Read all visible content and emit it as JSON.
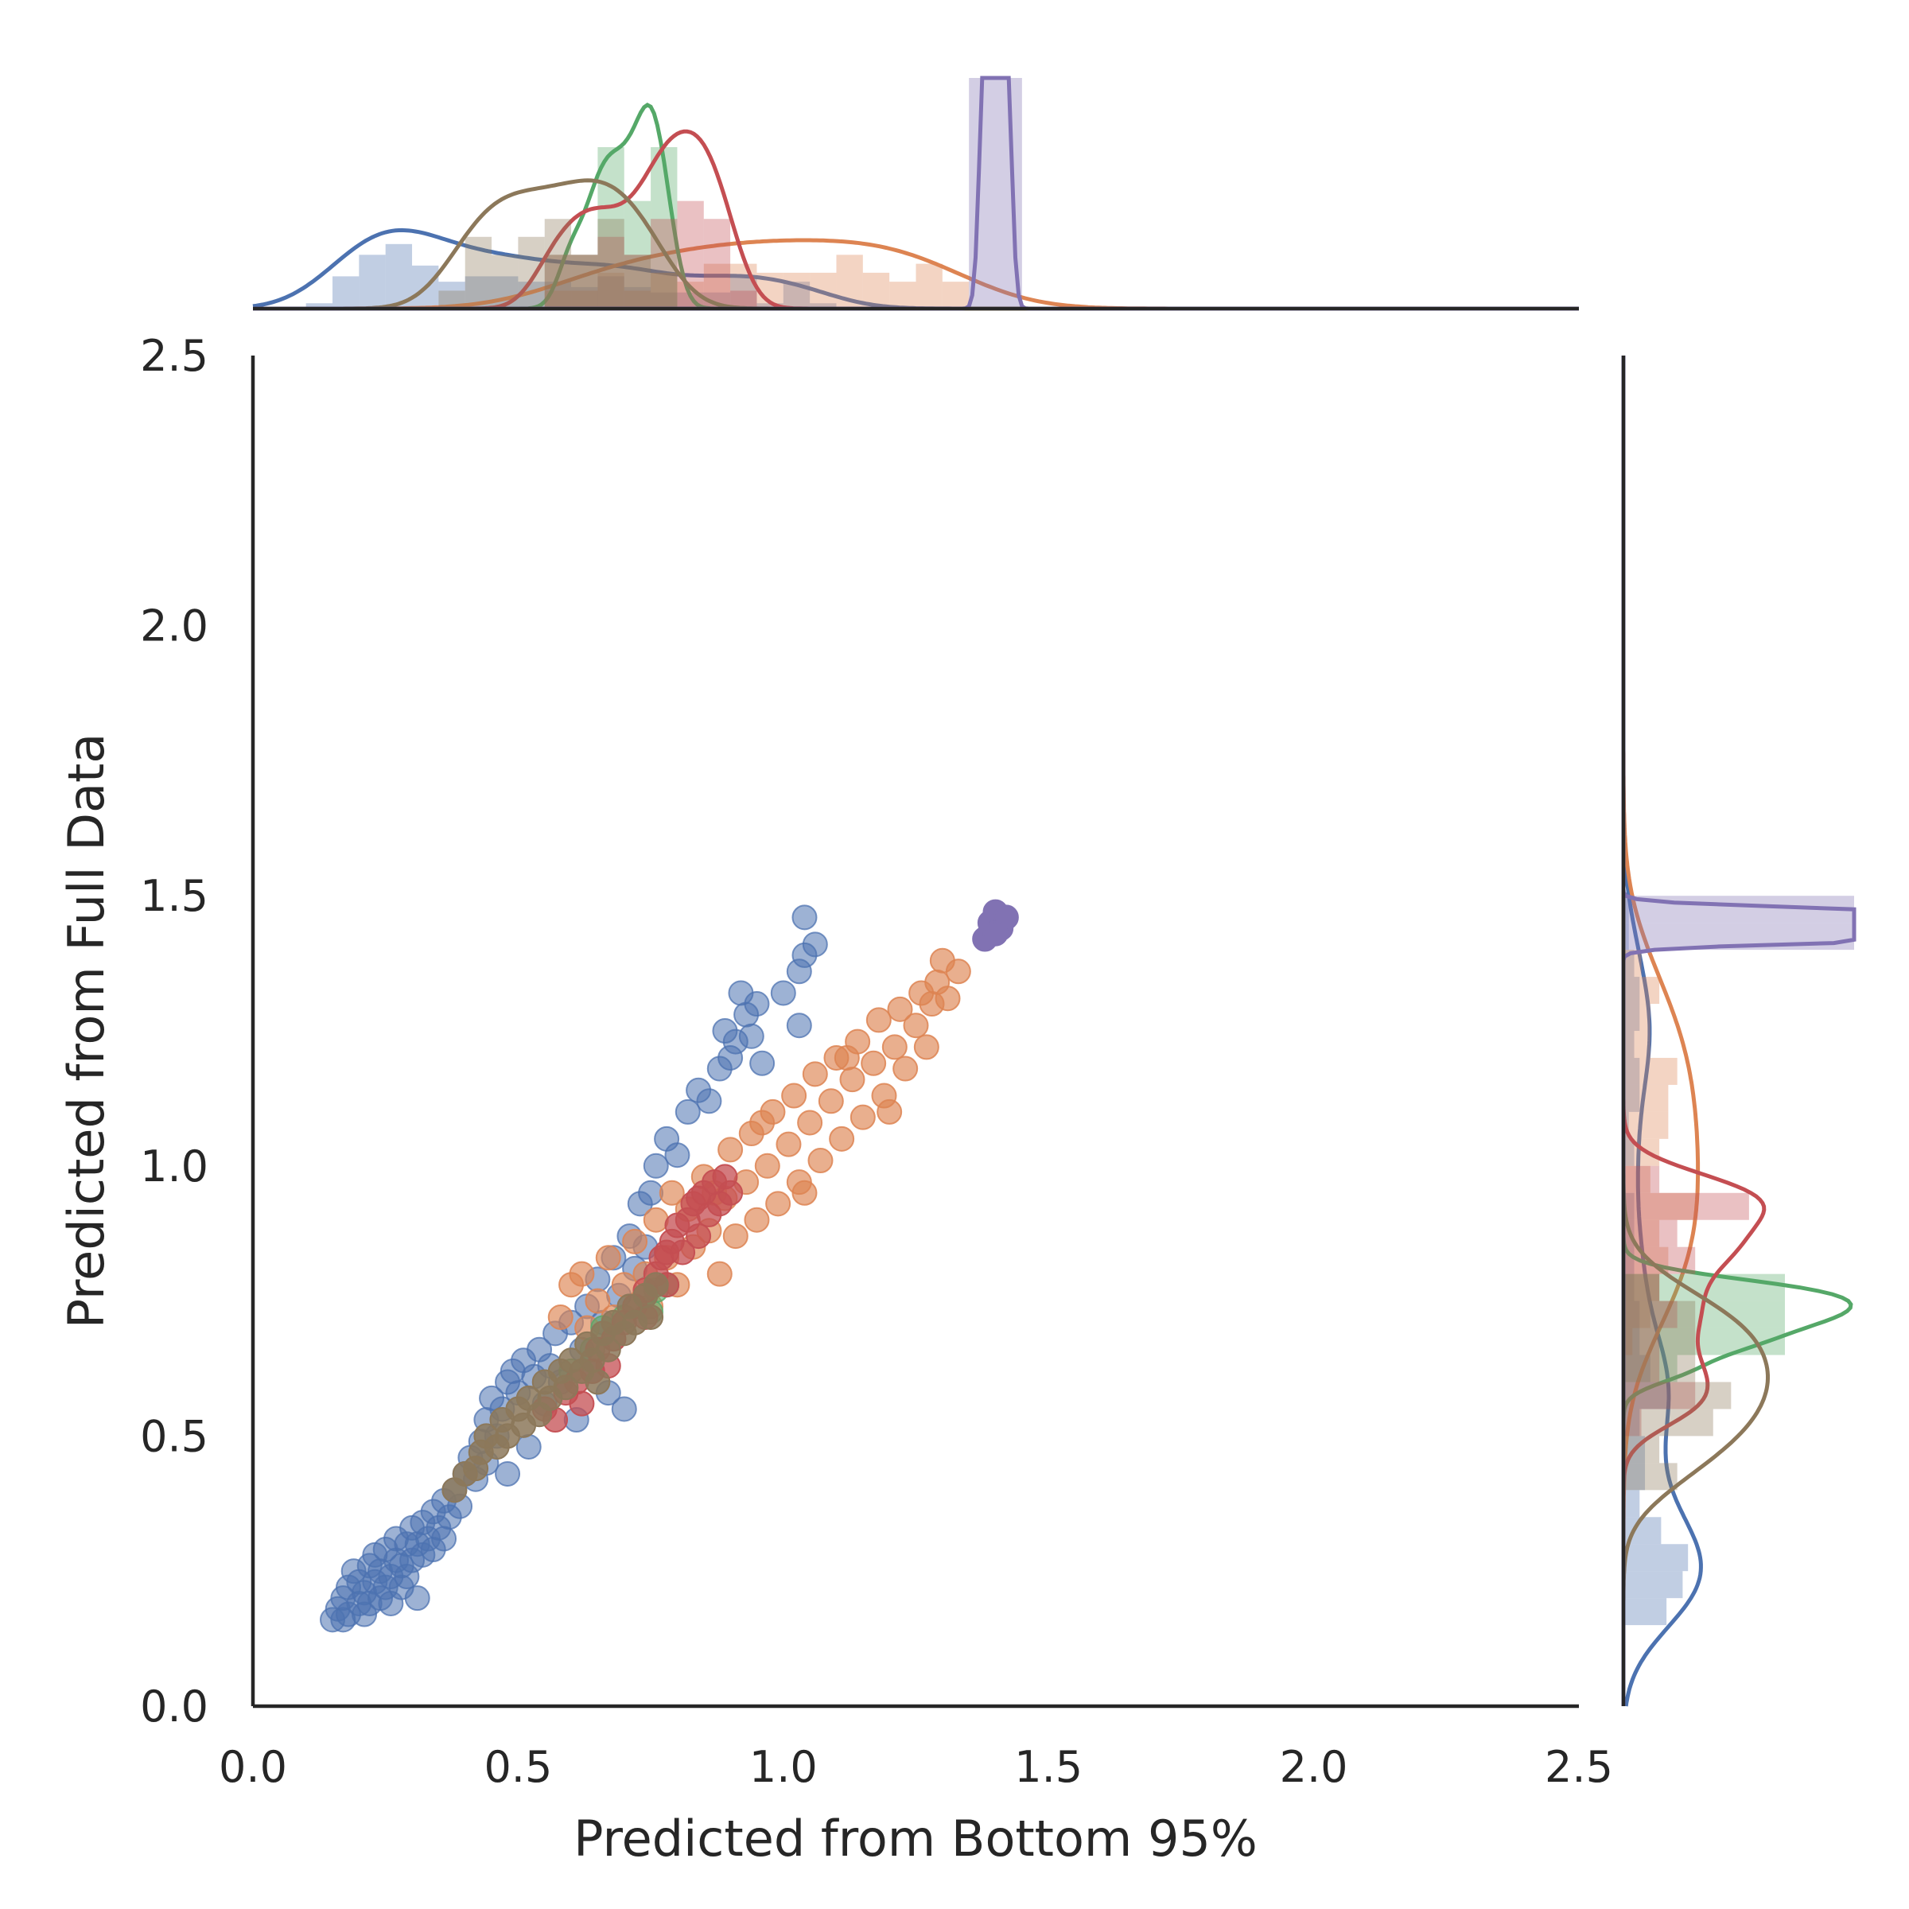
{
  "chart_data": {
    "type": "scatter",
    "title": "",
    "xlabel": "Predicted from Bottom 95%",
    "ylabel": "Predicted from Full Data",
    "xlim": [
      0.0,
      2.5
    ],
    "ylim": [
      0.0,
      2.5
    ],
    "xticks": [
      "0.0",
      "0.5",
      "1.0",
      "1.5",
      "2.0",
      "2.5"
    ],
    "yticks": [
      "0.0",
      "0.5",
      "1.0",
      "1.5",
      "2.0",
      "2.5"
    ],
    "grid": false,
    "legend": "none",
    "marginals": "histogram + kde on top (x) and right (y)",
    "series": [
      {
        "color": "#4c72b0",
        "alpha": 0.55,
        "points": [
          [
            0.15,
            0.16
          ],
          [
            0.16,
            0.18
          ],
          [
            0.17,
            0.16
          ],
          [
            0.17,
            0.2
          ],
          [
            0.18,
            0.22
          ],
          [
            0.18,
            0.17
          ],
          [
            0.19,
            0.25
          ],
          [
            0.2,
            0.19
          ],
          [
            0.2,
            0.23
          ],
          [
            0.21,
            0.17
          ],
          [
            0.21,
            0.21
          ],
          [
            0.22,
            0.26
          ],
          [
            0.22,
            0.19
          ],
          [
            0.23,
            0.23
          ],
          [
            0.23,
            0.28
          ],
          [
            0.24,
            0.2
          ],
          [
            0.24,
            0.25
          ],
          [
            0.25,
            0.22
          ],
          [
            0.25,
            0.29
          ],
          [
            0.26,
            0.24
          ],
          [
            0.26,
            0.19
          ],
          [
            0.27,
            0.27
          ],
          [
            0.27,
            0.31
          ],
          [
            0.28,
            0.22
          ],
          [
            0.28,
            0.26
          ],
          [
            0.29,
            0.3
          ],
          [
            0.29,
            0.24
          ],
          [
            0.3,
            0.33
          ],
          [
            0.3,
            0.27
          ],
          [
            0.31,
            0.3
          ],
          [
            0.31,
            0.2
          ],
          [
            0.32,
            0.34
          ],
          [
            0.32,
            0.28
          ],
          [
            0.33,
            0.31
          ],
          [
            0.34,
            0.36
          ],
          [
            0.34,
            0.29
          ],
          [
            0.35,
            0.33
          ],
          [
            0.36,
            0.38
          ],
          [
            0.36,
            0.31
          ],
          [
            0.37,
            0.35
          ],
          [
            0.38,
            0.4
          ],
          [
            0.39,
            0.37
          ],
          [
            0.4,
            0.43
          ],
          [
            0.41,
            0.46
          ],
          [
            0.42,
            0.42
          ],
          [
            0.43,
            0.49
          ],
          [
            0.44,
            0.53
          ],
          [
            0.44,
            0.45
          ],
          [
            0.45,
            0.57
          ],
          [
            0.46,
            0.5
          ],
          [
            0.47,
            0.55
          ],
          [
            0.48,
            0.6
          ],
          [
            0.48,
            0.43
          ],
          [
            0.49,
            0.62
          ],
          [
            0.5,
            0.58
          ],
          [
            0.51,
            0.64
          ],
          [
            0.52,
            0.48
          ],
          [
            0.53,
            0.61
          ],
          [
            0.54,
            0.66
          ],
          [
            0.55,
            0.56
          ],
          [
            0.56,
            0.63
          ],
          [
            0.57,
            0.69
          ],
          [
            0.58,
            0.6
          ],
          [
            0.6,
            0.71
          ],
          [
            0.61,
            0.53
          ],
          [
            0.62,
            0.66
          ],
          [
            0.63,
            0.74
          ],
          [
            0.64,
            0.62
          ],
          [
            0.65,
            0.79
          ],
          [
            0.66,
            0.71
          ],
          [
            0.67,
            0.58
          ],
          [
            0.68,
            0.83
          ],
          [
            0.69,
            0.76
          ],
          [
            0.7,
            0.55
          ],
          [
            0.71,
            0.87
          ],
          [
            0.72,
            0.81
          ],
          [
            0.73,
            0.93
          ],
          [
            0.74,
            0.85
          ],
          [
            0.75,
            0.95
          ],
          [
            0.76,
            1.0
          ],
          [
            0.78,
            1.05
          ],
          [
            0.8,
            1.02
          ],
          [
            0.82,
            1.1
          ],
          [
            0.84,
            1.14
          ],
          [
            0.86,
            1.12
          ],
          [
            0.88,
            1.18
          ],
          [
            0.89,
            1.25
          ],
          [
            0.9,
            1.2
          ],
          [
            0.91,
            1.23
          ],
          [
            0.92,
            1.32
          ],
          [
            0.93,
            1.28
          ],
          [
            0.94,
            1.24
          ],
          [
            0.95,
            1.3
          ],
          [
            0.96,
            1.19
          ],
          [
            1.0,
            1.32
          ],
          [
            1.03,
            1.36
          ],
          [
            1.04,
            1.39
          ],
          [
            1.06,
            1.41
          ],
          [
            1.04,
            1.46
          ],
          [
            1.03,
            1.26
          ]
        ]
      },
      {
        "color": "#dd8452",
        "alpha": 0.65,
        "points": [
          [
            0.6,
            0.78
          ],
          [
            0.62,
            0.8
          ],
          [
            0.65,
            0.75
          ],
          [
            0.67,
            0.83
          ],
          [
            0.7,
            0.78
          ],
          [
            0.72,
            0.86
          ],
          [
            0.74,
            0.8
          ],
          [
            0.76,
            0.9
          ],
          [
            0.78,
            0.83
          ],
          [
            0.79,
            0.95
          ],
          [
            0.8,
            0.78
          ],
          [
            0.82,
            0.92
          ],
          [
            0.83,
            0.85
          ],
          [
            0.85,
            0.98
          ],
          [
            0.86,
            0.88
          ],
          [
            0.88,
            0.8
          ],
          [
            0.89,
            0.94
          ],
          [
            0.9,
            1.03
          ],
          [
            0.91,
            0.87
          ],
          [
            0.93,
            0.97
          ],
          [
            0.94,
            1.06
          ],
          [
            0.95,
            0.9
          ],
          [
            0.97,
            1.0
          ],
          [
            0.98,
            1.1
          ],
          [
            0.99,
            0.93
          ],
          [
            1.01,
            1.04
          ],
          [
            1.02,
            1.13
          ],
          [
            1.03,
            0.97
          ],
          [
            1.05,
            1.08
          ],
          [
            1.06,
            1.17
          ],
          [
            1.07,
            1.01
          ],
          [
            1.09,
            1.12
          ],
          [
            1.1,
            1.2
          ],
          [
            1.11,
            1.05
          ],
          [
            1.13,
            1.16
          ],
          [
            1.14,
            1.23
          ],
          [
            1.15,
            1.09
          ],
          [
            1.17,
            1.19
          ],
          [
            1.18,
            1.27
          ],
          [
            1.19,
            1.13
          ],
          [
            1.21,
            1.22
          ],
          [
            1.22,
            1.29
          ],
          [
            1.23,
            1.18
          ],
          [
            1.25,
            1.26
          ],
          [
            1.26,
            1.32
          ],
          [
            1.27,
            1.22
          ],
          [
            1.29,
            1.34
          ],
          [
            1.3,
            1.38
          ],
          [
            1.31,
            1.31
          ],
          [
            1.33,
            1.36
          ],
          [
            0.58,
            0.72
          ],
          [
            0.63,
            0.7
          ],
          [
            0.68,
            0.72
          ],
          [
            0.75,
            0.74
          ],
          [
            0.87,
            0.95
          ],
          [
            0.96,
            1.08
          ],
          [
            1.04,
            0.95
          ],
          [
            1.12,
            1.2
          ],
          [
            1.2,
            1.1
          ],
          [
            1.28,
            1.3
          ]
        ]
      },
      {
        "color": "#55a868",
        "alpha": 0.6,
        "points": [
          [
            0.6,
            0.62
          ],
          [
            0.64,
            0.66
          ],
          [
            0.66,
            0.7
          ],
          [
            0.68,
            0.68
          ],
          [
            0.7,
            0.72
          ],
          [
            0.72,
            0.74
          ],
          [
            0.74,
            0.76
          ],
          [
            0.75,
            0.73
          ],
          [
            0.76,
            0.77
          ],
          [
            0.78,
            0.78
          ]
        ]
      },
      {
        "color": "#c44e52",
        "alpha": 0.75,
        "points": [
          [
            0.55,
            0.55
          ],
          [
            0.57,
            0.53
          ],
          [
            0.59,
            0.58
          ],
          [
            0.61,
            0.6
          ],
          [
            0.62,
            0.56
          ],
          [
            0.64,
            0.62
          ],
          [
            0.65,
            0.66
          ],
          [
            0.67,
            0.63
          ],
          [
            0.68,
            0.68
          ],
          [
            0.7,
            0.71
          ],
          [
            0.72,
            0.74
          ],
          [
            0.74,
            0.77
          ],
          [
            0.76,
            0.8
          ],
          [
            0.77,
            0.83
          ],
          [
            0.78,
            0.78
          ],
          [
            0.79,
            0.86
          ],
          [
            0.8,
            0.89
          ],
          [
            0.81,
            0.84
          ],
          [
            0.82,
            0.9
          ],
          [
            0.83,
            0.93
          ],
          [
            0.84,
            0.87
          ],
          [
            0.85,
            0.95
          ],
          [
            0.86,
            0.91
          ],
          [
            0.87,
            0.97
          ],
          [
            0.88,
            0.93
          ],
          [
            0.89,
            0.98
          ],
          [
            0.9,
            0.95
          ],
          [
            0.84,
            0.94
          ],
          [
            0.78,
            0.84
          ],
          [
            0.74,
            0.72
          ]
        ]
      },
      {
        "color": "#8c785a",
        "alpha": 0.85,
        "points": [
          [
            0.38,
            0.4
          ],
          [
            0.4,
            0.43
          ],
          [
            0.42,
            0.44
          ],
          [
            0.43,
            0.47
          ],
          [
            0.44,
            0.5
          ],
          [
            0.46,
            0.48
          ],
          [
            0.47,
            0.53
          ],
          [
            0.48,
            0.5
          ],
          [
            0.5,
            0.55
          ],
          [
            0.51,
            0.52
          ],
          [
            0.52,
            0.57
          ],
          [
            0.54,
            0.54
          ],
          [
            0.55,
            0.6
          ],
          [
            0.56,
            0.57
          ],
          [
            0.58,
            0.62
          ],
          [
            0.59,
            0.59
          ],
          [
            0.6,
            0.64
          ],
          [
            0.62,
            0.62
          ],
          [
            0.63,
            0.67
          ],
          [
            0.64,
            0.64
          ],
          [
            0.66,
            0.69
          ],
          [
            0.67,
            0.66
          ],
          [
            0.68,
            0.71
          ],
          [
            0.7,
            0.69
          ],
          [
            0.71,
            0.74
          ],
          [
            0.72,
            0.71
          ],
          [
            0.74,
            0.76
          ],
          [
            0.75,
            0.72
          ],
          [
            0.76,
            0.78
          ],
          [
            0.65,
            0.6
          ]
        ]
      },
      {
        "color": "#8172b3",
        "alpha": 1.0,
        "points": [
          [
            1.38,
            1.42
          ],
          [
            1.39,
            1.45
          ],
          [
            1.4,
            1.47
          ],
          [
            1.41,
            1.44
          ],
          [
            1.42,
            1.46
          ],
          [
            1.4,
            1.43
          ]
        ]
      }
    ]
  }
}
